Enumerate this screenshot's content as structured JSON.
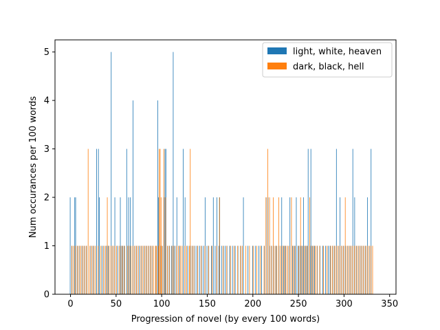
{
  "chart_data": {
    "type": "bar",
    "xlabel": "Progression of novel (by every 100 words)",
    "ylabel": "Num occurances per 100 words",
    "xlim": [
      -17,
      357
    ],
    "ylim": [
      0,
      5.25
    ],
    "xticks": [
      0,
      50,
      100,
      150,
      200,
      250,
      300,
      350
    ],
    "yticks": [
      0,
      1,
      2,
      3,
      4,
      5
    ],
    "grid": false,
    "legend_position": "top-right",
    "series": [
      {
        "name": "light, white, heaven",
        "color": "#1f77b4",
        "offset": -0.35,
        "points": [
          [
            0,
            2
          ],
          [
            2,
            1
          ],
          [
            5,
            2
          ],
          [
            6,
            2
          ],
          [
            8,
            1
          ],
          [
            10,
            1
          ],
          [
            12,
            1
          ],
          [
            14,
            1
          ],
          [
            16,
            1
          ],
          [
            18,
            1
          ],
          [
            22,
            1
          ],
          [
            24,
            1
          ],
          [
            26,
            1
          ],
          [
            29,
            3
          ],
          [
            31,
            3
          ],
          [
            32,
            2
          ],
          [
            35,
            1
          ],
          [
            37,
            1
          ],
          [
            40,
            1
          ],
          [
            42,
            1
          ],
          [
            45,
            5
          ],
          [
            47,
            1
          ],
          [
            49,
            2
          ],
          [
            52,
            1
          ],
          [
            55,
            2
          ],
          [
            57,
            1
          ],
          [
            59,
            1
          ],
          [
            62,
            3
          ],
          [
            64,
            2
          ],
          [
            66,
            2
          ],
          [
            69,
            4
          ],
          [
            71,
            1
          ],
          [
            73,
            1
          ],
          [
            76,
            1
          ],
          [
            78,
            1
          ],
          [
            80,
            1
          ],
          [
            82,
            1
          ],
          [
            84,
            1
          ],
          [
            86,
            1
          ],
          [
            88,
            1
          ],
          [
            90,
            1
          ],
          [
            94,
            1
          ],
          [
            96,
            4
          ],
          [
            97,
            2
          ],
          [
            99,
            1
          ],
          [
            101,
            1
          ],
          [
            103,
            2
          ],
          [
            104,
            3
          ],
          [
            105,
            3
          ],
          [
            107,
            1
          ],
          [
            109,
            1
          ],
          [
            111,
            1
          ],
          [
            113,
            5
          ],
          [
            115,
            1
          ],
          [
            117,
            2
          ],
          [
            120,
            1
          ],
          [
            124,
            3
          ],
          [
            126,
            2
          ],
          [
            129,
            1
          ],
          [
            132,
            1
          ],
          [
            134,
            1
          ],
          [
            136,
            1
          ],
          [
            138,
            1
          ],
          [
            140,
            1
          ],
          [
            142,
            1
          ],
          [
            144,
            1
          ],
          [
            146,
            1
          ],
          [
            148,
            2
          ],
          [
            150,
            1
          ],
          [
            152,
            1
          ],
          [
            155,
            1
          ],
          [
            157,
            2
          ],
          [
            159,
            1
          ],
          [
            161,
            2
          ],
          [
            163,
            1
          ],
          [
            164,
            2
          ],
          [
            166,
            1
          ],
          [
            168,
            1
          ],
          [
            170,
            1
          ],
          [
            172,
            1
          ],
          [
            175,
            1
          ],
          [
            178,
            1
          ],
          [
            181,
            1
          ],
          [
            184,
            1
          ],
          [
            187,
            1
          ],
          [
            190,
            2
          ],
          [
            195,
            1
          ],
          [
            200,
            1
          ],
          [
            203,
            1
          ],
          [
            207,
            1
          ],
          [
            210,
            1
          ],
          [
            213,
            1
          ],
          [
            215,
            2
          ],
          [
            217,
            2
          ],
          [
            219,
            1
          ],
          [
            221,
            1
          ],
          [
            223,
            1
          ],
          [
            226,
            1
          ],
          [
            229,
            1
          ],
          [
            232,
            2
          ],
          [
            234,
            1
          ],
          [
            236,
            1
          ],
          [
            239,
            1
          ],
          [
            241,
            2
          ],
          [
            244,
            1
          ],
          [
            246,
            1
          ],
          [
            248,
            2
          ],
          [
            250,
            1
          ],
          [
            252,
            1
          ],
          [
            254,
            1
          ],
          [
            256,
            2
          ],
          [
            258,
            1
          ],
          [
            260,
            1
          ],
          [
            261,
            3
          ],
          [
            263,
            1
          ],
          [
            264,
            3
          ],
          [
            266,
            1
          ],
          [
            268,
            1
          ],
          [
            271,
            1
          ],
          [
            274,
            1
          ],
          [
            277,
            1
          ],
          [
            280,
            1
          ],
          [
            283,
            1
          ],
          [
            285,
            1
          ],
          [
            288,
            1
          ],
          [
            290,
            1
          ],
          [
            292,
            3
          ],
          [
            294,
            1
          ],
          [
            296,
            2
          ],
          [
            298,
            1
          ],
          [
            300,
            1
          ],
          [
            302,
            1
          ],
          [
            304,
            1
          ],
          [
            306,
            1
          ],
          [
            308,
            1
          ],
          [
            310,
            3
          ],
          [
            312,
            2
          ],
          [
            314,
            1
          ],
          [
            316,
            1
          ],
          [
            318,
            1
          ],
          [
            320,
            1
          ],
          [
            322,
            1
          ],
          [
            324,
            1
          ],
          [
            326,
            2
          ],
          [
            328,
            1
          ],
          [
            330,
            3
          ]
        ]
      },
      {
        "name": "dark, black, hell",
        "color": "#ff7f0e",
        "offset": 0.35,
        "points": [
          [
            1,
            1
          ],
          [
            3,
            1
          ],
          [
            5,
            1
          ],
          [
            7,
            1
          ],
          [
            9,
            1
          ],
          [
            11,
            1
          ],
          [
            13,
            1
          ],
          [
            15,
            1
          ],
          [
            17,
            1
          ],
          [
            19,
            3
          ],
          [
            21,
            1
          ],
          [
            23,
            1
          ],
          [
            25,
            1
          ],
          [
            27,
            1
          ],
          [
            30,
            1
          ],
          [
            33,
            1
          ],
          [
            36,
            1
          ],
          [
            38,
            1
          ],
          [
            40,
            2
          ],
          [
            42,
            1
          ],
          [
            44,
            1
          ],
          [
            46,
            1
          ],
          [
            48,
            1
          ],
          [
            50,
            1
          ],
          [
            53,
            1
          ],
          [
            55,
            1
          ],
          [
            57,
            1
          ],
          [
            59,
            1
          ],
          [
            62,
            1
          ],
          [
            64,
            1
          ],
          [
            66,
            1
          ],
          [
            68,
            1
          ],
          [
            70,
            1
          ],
          [
            72,
            1
          ],
          [
            74,
            1
          ],
          [
            77,
            1
          ],
          [
            79,
            1
          ],
          [
            81,
            1
          ],
          [
            83,
            1
          ],
          [
            85,
            1
          ],
          [
            87,
            1
          ],
          [
            89,
            1
          ],
          [
            91,
            1
          ],
          [
            93,
            1
          ],
          [
            94,
            1
          ],
          [
            96,
            1
          ],
          [
            97,
            3
          ],
          [
            98,
            3
          ],
          [
            99,
            2
          ],
          [
            100,
            1
          ],
          [
            102,
            3
          ],
          [
            104,
            2
          ],
          [
            106,
            1
          ],
          [
            108,
            1
          ],
          [
            111,
            1
          ],
          [
            113,
            1
          ],
          [
            116,
            1
          ],
          [
            118,
            1
          ],
          [
            120,
            1
          ],
          [
            122,
            1
          ],
          [
            125,
            1
          ],
          [
            127,
            1
          ],
          [
            130,
            1
          ],
          [
            131,
            3
          ],
          [
            133,
            1
          ],
          [
            135,
            1
          ],
          [
            139,
            1
          ],
          [
            143,
            1
          ],
          [
            147,
            1
          ],
          [
            151,
            1
          ],
          [
            155,
            1
          ],
          [
            160,
            1
          ],
          [
            163,
            2
          ],
          [
            167,
            1
          ],
          [
            171,
            1
          ],
          [
            175,
            1
          ],
          [
            179,
            1
          ],
          [
            183,
            1
          ],
          [
            186,
            1
          ],
          [
            188,
            1
          ],
          [
            192,
            1
          ],
          [
            196,
            1
          ],
          [
            200,
            1
          ],
          [
            204,
            1
          ],
          [
            208,
            1
          ],
          [
            212,
            1
          ],
          [
            214,
            2
          ],
          [
            216,
            3
          ],
          [
            218,
            2
          ],
          [
            220,
            1
          ],
          [
            222,
            2
          ],
          [
            224,
            1
          ],
          [
            226,
            1
          ],
          [
            228,
            2
          ],
          [
            230,
            1
          ],
          [
            232,
            1
          ],
          [
            234,
            1
          ],
          [
            236,
            1
          ],
          [
            238,
            1
          ],
          [
            240,
            1
          ],
          [
            242,
            2
          ],
          [
            244,
            1
          ],
          [
            246,
            1
          ],
          [
            250,
            1
          ],
          [
            252,
            2
          ],
          [
            254,
            1
          ],
          [
            256,
            1
          ],
          [
            258,
            1
          ],
          [
            260,
            1
          ],
          [
            262,
            2
          ],
          [
            264,
            1
          ],
          [
            266,
            1
          ],
          [
            268,
            1
          ],
          [
            270,
            1
          ],
          [
            273,
            1
          ],
          [
            277,
            1
          ],
          [
            281,
            1
          ],
          [
            285,
            1
          ],
          [
            287,
            1
          ],
          [
            289,
            1
          ],
          [
            291,
            1
          ],
          [
            293,
            1
          ],
          [
            295,
            1
          ],
          [
            297,
            1
          ],
          [
            299,
            1
          ],
          [
            301,
            2
          ],
          [
            303,
            1
          ],
          [
            305,
            1
          ],
          [
            307,
            1
          ],
          [
            309,
            1
          ],
          [
            311,
            1
          ],
          [
            313,
            1
          ],
          [
            315,
            1
          ],
          [
            317,
            1
          ],
          [
            319,
            1
          ],
          [
            321,
            1
          ],
          [
            323,
            1
          ],
          [
            325,
            1
          ],
          [
            327,
            1
          ],
          [
            329,
            1
          ],
          [
            331,
            1
          ]
        ]
      }
    ]
  }
}
